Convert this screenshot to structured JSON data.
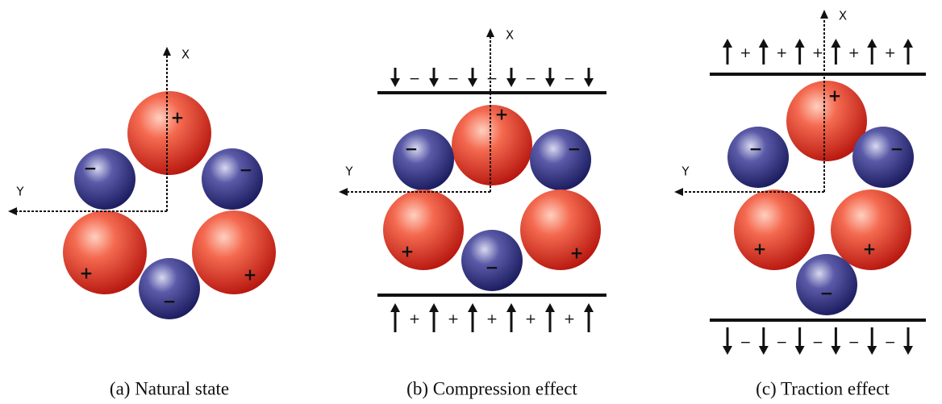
{
  "panels": [
    {
      "caption": "(a) Natural state",
      "x_label": "X",
      "y_label": "Y",
      "ions": [
        {
          "sign": "+"
        },
        {
          "sign": "−"
        },
        {
          "sign": "−"
        },
        {
          "sign": "+"
        },
        {
          "sign": "+"
        },
        {
          "sign": "−"
        }
      ]
    },
    {
      "caption": "(b) Compression effect",
      "x_label": "X",
      "y_label": "Y",
      "ions": [
        {
          "sign": "+"
        },
        {
          "sign": "−"
        },
        {
          "sign": "−"
        },
        {
          "sign": "+"
        },
        {
          "sign": "+"
        },
        {
          "sign": "−"
        }
      ],
      "top_signs": [
        "−",
        "−",
        "−",
        "−",
        "−"
      ],
      "bottom_signs": [
        "+",
        "+",
        "+",
        "+",
        "+"
      ]
    },
    {
      "caption": "(c) Traction effect",
      "x_label": "X",
      "y_label": "Y",
      "ions": [
        {
          "sign": "+"
        },
        {
          "sign": "−"
        },
        {
          "sign": "−"
        },
        {
          "sign": "+"
        },
        {
          "sign": "+"
        },
        {
          "sign": "−"
        }
      ],
      "top_signs": [
        "+",
        "+",
        "+",
        "+",
        "+"
      ],
      "bottom_signs": [
        "−",
        "−",
        "−",
        "−",
        "−"
      ]
    }
  ]
}
